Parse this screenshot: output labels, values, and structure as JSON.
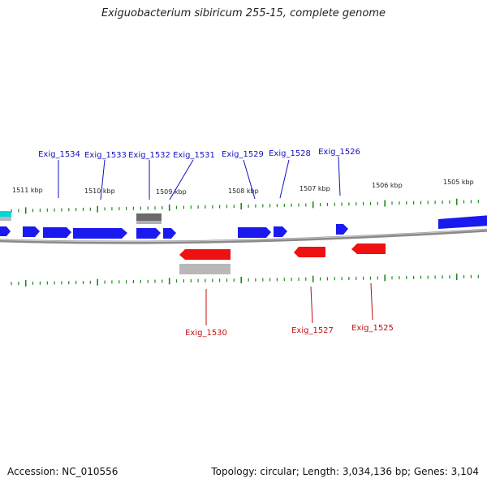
{
  "title": "Exiguobacterium sibiricum 255-15, complete genome",
  "accession_text": "Accession: NC_010556",
  "summary_text": "Topology: circular; Length: 3,034,136 bp; Genes: 3,104",
  "colors": {
    "forward_gene": "#1a1af0",
    "reverse_gene": "#ee1111",
    "label_forward": "#1010c0",
    "label_reverse": "#c01010",
    "tick": "#1a8a1a",
    "pseudo_gene": "#666666",
    "rna_gene": "#00d0d0"
  },
  "ruler": {
    "unit": "kbp",
    "positions": [
      1511,
      1510,
      1509,
      1508,
      1507,
      1506,
      1505
    ],
    "labels": [
      "1511 kbp",
      "1510 kbp",
      "1509 kbp",
      "1508 kbp",
      "1507 kbp",
      "1506 kbp",
      "1505 kbp"
    ]
  },
  "genes_forward_labels": [
    "Exig_1534",
    "Exig_1533",
    "Exig_1532",
    "Exig_1531",
    "Exig_1529",
    "Exig_1528",
    "Exig_1526"
  ],
  "genes_reverse_labels": [
    "Exig_1530",
    "Exig_1527",
    "Exig_1525"
  ]
}
